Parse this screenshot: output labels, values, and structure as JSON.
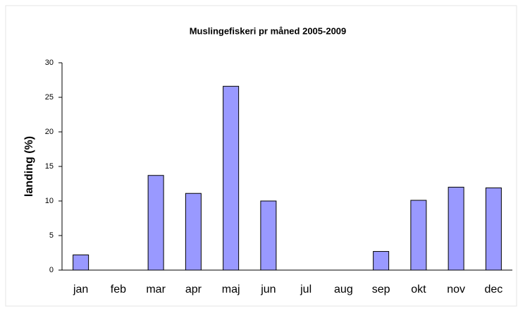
{
  "chart_data": {
    "type": "bar",
    "title": "Muslingefiskeri pr måned 2005-2009",
    "y_label": "landing (%)",
    "categories": [
      "jan",
      "feb",
      "mar",
      "apr",
      "maj",
      "jun",
      "jul",
      "aug",
      "sep",
      "okt",
      "nov",
      "dec"
    ],
    "values": [
      2.2,
      0,
      13.7,
      11.1,
      26.6,
      10,
      0,
      0,
      2.7,
      10.1,
      12,
      11.9
    ],
    "color": "#9999ff",
    "ylim": [
      0,
      30
    ],
    "yticks": [
      0,
      5,
      10,
      15,
      20,
      25,
      30
    ],
    "grid": false
  }
}
